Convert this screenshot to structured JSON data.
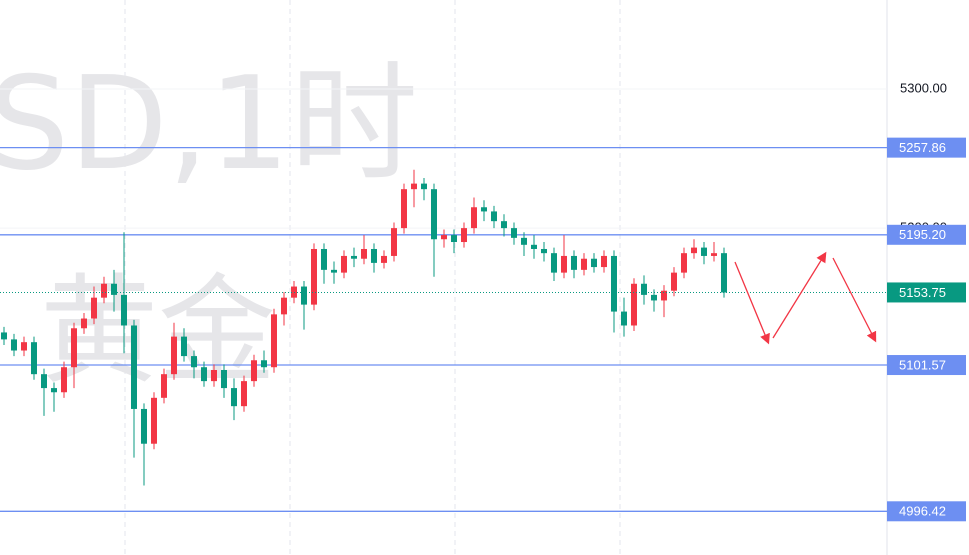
{
  "chart_data": {
    "type": "candlestick",
    "watermark": [
      "SD,1时",
      "黄金"
    ],
    "ylim": [
      4965,
      5364
    ],
    "yticks": [
      {
        "value": 5300,
        "label": "5300.00"
      },
      {
        "value": 5200,
        "label": "5200.00"
      }
    ],
    "levels": [
      {
        "value": 5257.86,
        "label": "5257.86"
      },
      {
        "value": 5195.2,
        "label": "5195.20"
      },
      {
        "value": 5101.57,
        "label": "5101.57"
      },
      {
        "value": 4996.42,
        "label": "4996.42"
      }
    ],
    "up_color": "#f23645",
    "down_color": "#089981",
    "level_color": "#6d8ff2",
    "open": [
      5125,
      5120,
      5112,
      5118,
      5095,
      5085,
      5082,
      5100,
      5128,
      5135,
      5150,
      5160,
      5152,
      5130,
      5070,
      5045,
      5078,
      5095,
      5122,
      5108,
      5100,
      5090,
      5098,
      5085,
      5072,
      5090,
      5105,
      5100,
      5138,
      5150,
      5158,
      5145,
      5185,
      5170,
      5168,
      5180,
      5178,
      5185,
      5175,
      5180,
      5200,
      5228,
      5232,
      5228,
      5192,
      5195,
      5190,
      5200,
      5215,
      5212,
      5205,
      5200,
      5193,
      5188,
      5185,
      5182,
      5168,
      5180,
      5170,
      5178,
      5172,
      5180,
      5140,
      5130,
      5160,
      5152,
      5148,
      5155,
      5168,
      5182,
      5186,
      5180,
      5182
    ],
    "high": [
      5129,
      5124,
      5122,
      5122,
      5099,
      5089,
      5104,
      5132,
      5139,
      5158,
      5165,
      5170,
      5197,
      5134,
      5074,
      5082,
      5099,
      5132,
      5128,
      5112,
      5104,
      5102,
      5102,
      5092,
      5094,
      5109,
      5112,
      5142,
      5154,
      5162,
      5162,
      5189,
      5189,
      5176,
      5184,
      5186,
      5195,
      5189,
      5184,
      5204,
      5232,
      5242,
      5236,
      5232,
      5199,
      5199,
      5204,
      5222,
      5220,
      5216,
      5210,
      5204,
      5197,
      5195,
      5190,
      5186,
      5195,
      5184,
      5182,
      5182,
      5184,
      5184,
      5150,
      5164,
      5166,
      5156,
      5159,
      5172,
      5186,
      5192,
      5190,
      5190,
      5186
    ],
    "low": [
      5116,
      5108,
      5108,
      5091,
      5065,
      5068,
      5078,
      5085,
      5124,
      5131,
      5146,
      5140,
      5110,
      5035,
      5015,
      5041,
      5074,
      5091,
      5104,
      5092,
      5086,
      5086,
      5078,
      5062,
      5068,
      5086,
      5096,
      5096,
      5130,
      5146,
      5127,
      5141,
      5160,
      5160,
      5164,
      5172,
      5174,
      5168,
      5171,
      5176,
      5196,
      5215,
      5220,
      5165,
      5186,
      5182,
      5186,
      5196,
      5205,
      5200,
      5194,
      5188,
      5180,
      5178,
      5176,
      5162,
      5164,
      5164,
      5166,
      5168,
      5168,
      5125,
      5122,
      5126,
      5145,
      5140,
      5136,
      5151,
      5164,
      5178,
      5174,
      5176,
      5150
    ],
    "close": [
      5120,
      5112,
      5118,
      5095,
      5085,
      5082,
      5100,
      5128,
      5135,
      5150,
      5160,
      5152,
      5130,
      5070,
      5045,
      5078,
      5095,
      5122,
      5108,
      5100,
      5090,
      5098,
      5085,
      5072,
      5090,
      5105,
      5100,
      5138,
      5150,
      5158,
      5145,
      5185,
      5170,
      5168,
      5180,
      5178,
      5185,
      5175,
      5180,
      5200,
      5228,
      5232,
      5228,
      5192,
      5195,
      5190,
      5200,
      5215,
      5212,
      5205,
      5200,
      5193,
      5188,
      5185,
      5182,
      5168,
      5180,
      5170,
      5178,
      5172,
      5180,
      5140,
      5130,
      5160,
      5152,
      5148,
      5155,
      5168,
      5182,
      5186,
      5180,
      5182,
      5153.75
    ]
  }
}
